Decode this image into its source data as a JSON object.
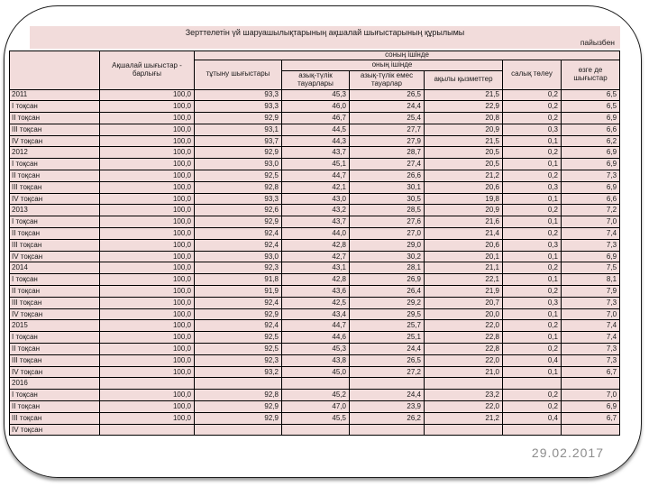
{
  "slide": {
    "title": "Зерттелетін үй шаруашылықтарының ақшалай шығыстарының құрылымы",
    "unit_label": "пайызбен",
    "date": "29.02.2017",
    "colors": {
      "cell_bg": "#F2DCDB",
      "grid_line": "#000000",
      "date_text": "#8C8C8C"
    }
  },
  "table": {
    "header": {
      "total": "Ақшалай шығыстар - барлығы",
      "of_which": "соның ішінде",
      "consumption": "тұтыну шығыстары",
      "including": "оның ішінде",
      "food": "азық-түлік тауарлары",
      "non_food": "азық-түлік емес тауарлар",
      "paid_services": "ақылы қызметтер",
      "tax": "салық төлеу",
      "other": "өзге де шығыстар"
    },
    "rows": [
      {
        "label": "2011",
        "type": "year",
        "values": [
          "100,0",
          "93,3",
          "45,3",
          "26,5",
          "21,5",
          "0,2",
          "6,5"
        ]
      },
      {
        "label": "I тоқсан",
        "type": "quarter",
        "values": [
          "100,0",
          "93,3",
          "46,0",
          "24,4",
          "22,9",
          "0,2",
          "6,5"
        ]
      },
      {
        "label": "II тоқсан",
        "type": "quarter",
        "values": [
          "100,0",
          "92,9",
          "46,7",
          "25,4",
          "20,8",
          "0,2",
          "6,9"
        ]
      },
      {
        "label": "III тоқсан",
        "type": "quarter",
        "values": [
          "100,0",
          "93,1",
          "44,5",
          "27,7",
          "20,9",
          "0,3",
          "6,6"
        ]
      },
      {
        "label": "IV тоқсан",
        "type": "quarter",
        "values": [
          "100,0",
          "93,7",
          "44,3",
          "27,9",
          "21,5",
          "0,1",
          "6,2"
        ]
      },
      {
        "label": "2012",
        "type": "year",
        "values": [
          "100,0",
          "92,9",
          "43,7",
          "28,7",
          "20,5",
          "0,2",
          "6,9"
        ]
      },
      {
        "label": "I тоқсан",
        "type": "quarter",
        "values": [
          "100,0",
          "93,0",
          "45,1",
          "27,4",
          "20,5",
          "0,1",
          "6,9"
        ]
      },
      {
        "label": "II тоқсан",
        "type": "quarter",
        "values": [
          "100,0",
          "92,5",
          "44,7",
          "26,6",
          "21,2",
          "0,2",
          "7,3"
        ]
      },
      {
        "label": "III тоқсан",
        "type": "quarter",
        "values": [
          "100,0",
          "92,8",
          "42,1",
          "30,1",
          "20,6",
          "0,3",
          "6,9"
        ]
      },
      {
        "label": "IV тоқсан",
        "type": "quarter",
        "values": [
          "100,0",
          "93,3",
          "43,0",
          "30,5",
          "19,8",
          "0,1",
          "6,6"
        ]
      },
      {
        "label": "2013",
        "type": "year",
        "values": [
          "100,0",
          "92,6",
          "43,2",
          "28,5",
          "20,9",
          "0,2",
          "7,2"
        ]
      },
      {
        "label": "I тоқсан",
        "type": "quarter",
        "values": [
          "100,0",
          "92,9",
          "43,7",
          "27,6",
          "21,6",
          "0,1",
          "7,0"
        ]
      },
      {
        "label": "II тоқсан",
        "type": "quarter",
        "values": [
          "100,0",
          "92,4",
          "44,0",
          "27,0",
          "21,4",
          "0,2",
          "7,4"
        ]
      },
      {
        "label": "III тоқсан",
        "type": "quarter",
        "values": [
          "100,0",
          "92,4",
          "42,8",
          "29,0",
          "20,6",
          "0,3",
          "7,3"
        ]
      },
      {
        "label": "IV тоқсан",
        "type": "quarter",
        "values": [
          "100,0",
          "93,0",
          "42,7",
          "30,2",
          "20,1",
          "0,1",
          "6,9"
        ]
      },
      {
        "label": "2014",
        "type": "year",
        "values": [
          "100,0",
          "92,3",
          "43,1",
          "28,1",
          "21,1",
          "0,2",
          "7,5"
        ]
      },
      {
        "label": "I тоқсан",
        "type": "quarter",
        "values": [
          "100,0",
          "91,8",
          "42,8",
          "26,9",
          "22,1",
          "0,1",
          "8,1"
        ]
      },
      {
        "label": "II тоқсан",
        "type": "quarter",
        "values": [
          "100,0",
          "91,9",
          "43,6",
          "26,4",
          "21,9",
          "0,2",
          "7,9"
        ]
      },
      {
        "label": "III тоқсан",
        "type": "quarter",
        "values": [
          "100,0",
          "92,4",
          "42,5",
          "29,2",
          "20,7",
          "0,3",
          "7,3"
        ]
      },
      {
        "label": "IV тоқсан",
        "type": "quarter",
        "values": [
          "100,0",
          "92,9",
          "43,4",
          "29,5",
          "20,0",
          "0,1",
          "7,0"
        ]
      },
      {
        "label": "2015",
        "type": "year",
        "values": [
          "100,0",
          "92,4",
          "44,7",
          "25,7",
          "22,0",
          "0,2",
          "7,4"
        ]
      },
      {
        "label": "I тоқсан",
        "type": "quarter",
        "values": [
          "100,0",
          "92,5",
          "44,6",
          "25,1",
          "22,8",
          "0,1",
          "7,4"
        ]
      },
      {
        "label": "II тоқсан",
        "type": "quarter",
        "values": [
          "100,0",
          "92,5",
          "45,3",
          "24,4",
          "22,8",
          "0,2",
          "7,3"
        ]
      },
      {
        "label": "III тоқсан",
        "type": "quarter",
        "values": [
          "100,0",
          "92,3",
          "43,8",
          "26,5",
          "22,0",
          "0,4",
          "7,3"
        ]
      },
      {
        "label": "IV тоқсан",
        "type": "quarter",
        "values": [
          "100,0",
          "93,2",
          "45,0",
          "27,2",
          "21,0",
          "0,1",
          "6,7"
        ]
      },
      {
        "label": "2016",
        "type": "year",
        "values": [
          "",
          "",
          "",
          "",
          "",
          "",
          ""
        ]
      },
      {
        "label": "I тоқсан",
        "type": "quarter",
        "values": [
          "100,0",
          "92,8",
          "45,2",
          "24,4",
          "23,2",
          "0,2",
          "7,0"
        ]
      },
      {
        "label": "II тоқсан",
        "type": "quarter",
        "values": [
          "100,0",
          "92,9",
          "47,0",
          "23,9",
          "22,0",
          "0,2",
          "6,9"
        ]
      },
      {
        "label": "III тоқсан",
        "type": "quarter",
        "values": [
          "100,0",
          "92,9",
          "45,5",
          "26,2",
          "21,2",
          "0,4",
          "6,7"
        ]
      },
      {
        "label": "IV тоқсан",
        "type": "quarter",
        "values": [
          "",
          "",
          "",
          "",
          "",
          "",
          ""
        ]
      }
    ]
  }
}
